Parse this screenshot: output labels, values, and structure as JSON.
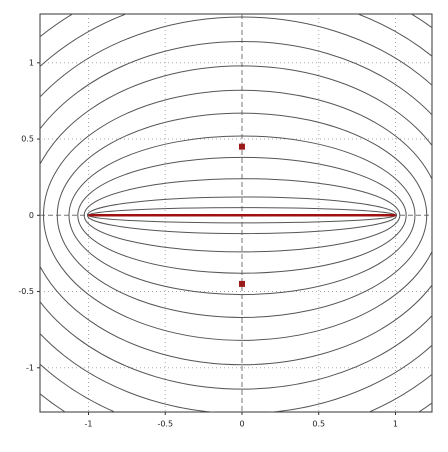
{
  "chart_data": {
    "type": "contour",
    "xlim": [
      -1.316,
      1.238
    ],
    "ylim": [
      -1.29,
      1.32
    ],
    "xticks": [
      -1,
      -0.5,
      0,
      0.5,
      1
    ],
    "yticks": [
      -1,
      -0.5,
      0,
      0.5,
      1
    ],
    "grid": true,
    "foci": [
      -1,
      1
    ],
    "levels": [
      0.05,
      0.12,
      0.24,
      0.38,
      0.52,
      0.67,
      0.82,
      0.98,
      1.14,
      1.3,
      1.46,
      1.62
    ],
    "line_color": "#555555",
    "segment": {
      "x": [
        -1,
        1
      ],
      "y": [
        0,
        0
      ],
      "color": "#a01010"
    },
    "points": {
      "x": [
        0,
        0
      ],
      "y": [
        0.45,
        -0.45
      ],
      "color": "#9b1b1b"
    }
  }
}
